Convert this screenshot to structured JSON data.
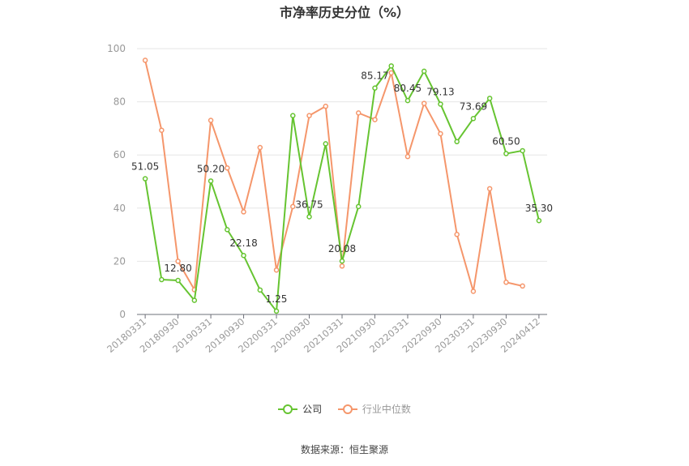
{
  "title": "市净率历史分位（%）",
  "source": "数据来源：恒生聚源",
  "colors": {
    "company": "#66c431",
    "industry": "#f5966b",
    "grid": "#e6e6e6",
    "axis": "#999999"
  },
  "chart_data": {
    "type": "line",
    "ylim": [
      0,
      100
    ],
    "yticks": [
      0,
      20,
      40,
      60,
      80,
      100
    ],
    "xticklabels": [
      "20180331",
      "20180930",
      "20190331",
      "20190930",
      "20200331",
      "20200930",
      "20210331",
      "20210930",
      "20220331",
      "20220930",
      "20230331",
      "20230930",
      "20240412"
    ],
    "series": [
      {
        "name": "公司",
        "values": [
          51.05,
          13.1,
          12.8,
          5.3,
          50.2,
          31.9,
          22.18,
          9.2,
          1.25,
          74.8,
          36.75,
          64.2,
          20.08,
          40.6,
          85.17,
          93.5,
          80.45,
          91.5,
          79.13,
          65.0,
          73.69,
          81.3,
          60.5,
          61.6,
          35.3
        ],
        "labels": [
          "51.05",
          "",
          "12.80",
          "",
          "50.20",
          "",
          "22.18",
          "",
          "1.25",
          "",
          "36.75",
          "",
          "20.08",
          "",
          "85.17",
          "",
          "80.45",
          "",
          "79.13",
          "",
          "73.69",
          "",
          "60.50",
          "",
          "35.30"
        ]
      },
      {
        "name": "行业中位数",
        "values": [
          95.6,
          69.3,
          20.0,
          9.3,
          73.0,
          55.1,
          38.6,
          62.8,
          16.7,
          40.6,
          74.8,
          78.3,
          18.2,
          75.8,
          73.3,
          90.9,
          59.4,
          79.4,
          68.0,
          30.1,
          8.7,
          47.3,
          12.1,
          10.7,
          null
        ]
      }
    ]
  },
  "legend": {
    "company": "公司",
    "industry": "行业中位数"
  }
}
